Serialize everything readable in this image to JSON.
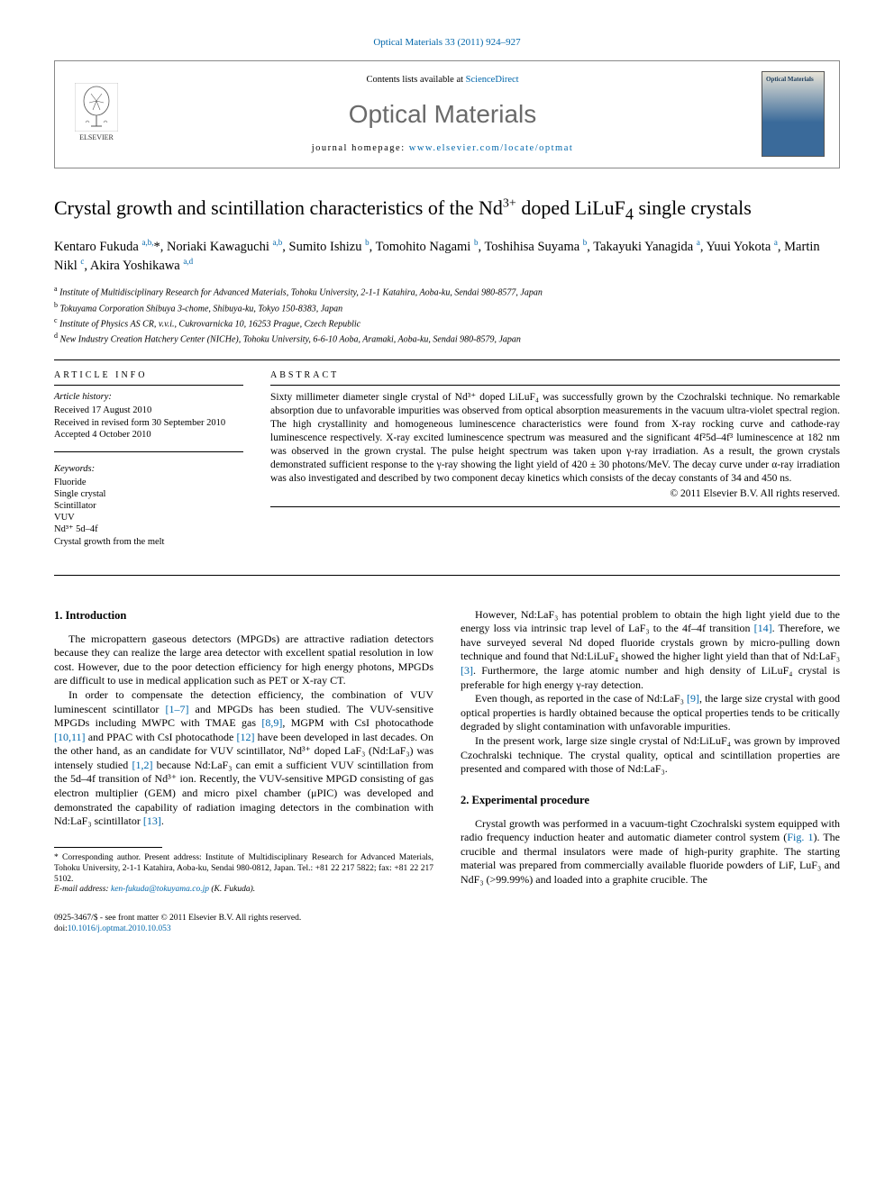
{
  "header": {
    "citation": "Optical Materials 33 (2011) 924–927",
    "contents_prefix": "Contents lists available at ",
    "contents_link": "ScienceDirect",
    "journal_name": "Optical Materials",
    "homepage_prefix": "journal homepage: ",
    "homepage_url": "www.elsevier.com/locate/optmat",
    "publisher_name": "ELSEVIER",
    "cover_label": "Optical Materials"
  },
  "title": {
    "text_before_sup": "Crystal growth and scintillation characteristics of the Nd",
    "sup": "3+",
    "text_after_sup": " doped LiLuF",
    "sub": "4",
    "text_end": " single crystals"
  },
  "authors_line": "Kentaro Fukuda <sup>a,b,</sup><span class='star'>*</span>, Noriaki Kawaguchi <sup>a,b</sup>, Sumito Ishizu <sup>b</sup>, Tomohito Nagami <sup>b</sup>, Toshihisa Suyama <sup>b</sup>, Takayuki Yanagida <sup>a</sup>, Yuui Yokota <sup>a</sup>, Martin Nikl <sup>c</sup>, Akira Yoshikawa <sup>a,d</sup>",
  "affiliations": [
    {
      "sup": "a",
      "text": "Institute of Multidisciplinary Research for Advanced Materials, Tohoku University, 2-1-1 Katahira, Aoba-ku, Sendai 980-8577, Japan"
    },
    {
      "sup": "b",
      "text": "Tokuyama Corporation Shibuya 3-chome, Shibuya-ku, Tokyo 150-8383, Japan"
    },
    {
      "sup": "c",
      "text": "Institute of Physics AS CR, v.v.i., Cukrovarnicka 10, 16253 Prague, Czech Republic"
    },
    {
      "sup": "d",
      "text": "New Industry Creation Hatchery Center (NICHe), Tohoku University, 6-6-10 Aoba, Aramaki, Aoba-ku, Sendai 980-8579, Japan"
    }
  ],
  "article_info": {
    "label": "ARTICLE INFO",
    "history_label": "Article history:",
    "received": "Received 17 August 2010",
    "revised": "Received in revised form 30 September 2010",
    "accepted": "Accepted 4 October 2010",
    "keywords_label": "Keywords:",
    "keywords": [
      "Fluoride",
      "Single crystal",
      "Scintillator",
      "VUV",
      "Nd³⁺ 5d–4f",
      "Crystal growth from the melt"
    ]
  },
  "abstract": {
    "label": "ABSTRACT",
    "text": "Sixty millimeter diameter single crystal of Nd³⁺ doped LiLuF₄ was successfully grown by the Czochralski technique. No remarkable absorption due to unfavorable impurities was observed from optical absorption measurements in the vacuum ultra-violet spectral region. The high crystallinity and homogeneous luminescence characteristics were found from X-ray rocking curve and cathode-ray luminescence respectively. X-ray excited luminescence spectrum was measured and the significant 4f²5d–4f³ luminescence at 182 nm was observed in the grown crystal. The pulse height spectrum was taken upon γ-ray irradiation. As a result, the grown crystals demonstrated sufficient response to the γ-ray showing the light yield of 420 ± 30 photons/MeV. The decay curve under α-ray irradiation was also investigated and described by two component decay kinetics which consists of the decay constants of 34 and 450 ns.",
    "copyright": "© 2011 Elsevier B.V. All rights reserved."
  },
  "sections": {
    "intro_heading": "1. Introduction",
    "intro_p1": "The micropattern gaseous detectors (MPGDs) are attractive radiation detectors because they can realize the large area detector with excellent spatial resolution in low cost. However, due to the poor detection efficiency for high energy photons, MPGDs are difficult to use in medical application such as PET or X-ray CT.",
    "intro_p2": "In order to compensate the detection efficiency, the combination of VUV luminescent scintillator <span class='ref'>[1–7]</span> and MPGDs has been studied. The VUV-sensitive MPGDs including MWPC with TMAE gas <span class='ref'>[8,9]</span>, MGPM with CsI photocathode <span class='ref'>[10,11]</span> and PPAC with CsI photocathode <span class='ref'>[12]</span> have been developed in last decades. On the other hand, as an candidate for VUV scintillator, Nd³⁺ doped LaF₃ (Nd:LaF₃) was intensely studied <span class='ref'>[1,2]</span> because Nd:LaF₃ can emit a sufficient VUV scintillation from the 5d–4f transition of Nd³⁺ ion. Recently, the VUV-sensitive MPGD consisting of gas electron multiplier (GEM) and micro pixel chamber (μPIC) was developed and demonstrated the capability of radiation imaging detectors in the combination with Nd:LaF₃ scintillator <span class='ref'>[13]</span>.",
    "col2_p1": "However, Nd:LaF₃ has potential problem to obtain the high light yield due to the energy loss via intrinsic trap level of LaF₃ to the 4f–4f transition <span class='ref'>[14]</span>. Therefore, we have surveyed several Nd doped fluoride crystals grown by micro-pulling down technique and found that Nd:LiLuF₄ showed the higher light yield than that of Nd:LaF₃ <span class='ref'>[3]</span>. Furthermore, the large atomic number and high density of LiLuF₄ crystal is preferable for high energy γ-ray detection.",
    "col2_p2": "Even though, as reported in the case of Nd:LaF₃ <span class='ref'>[9]</span>, the large size crystal with good optical properties is hardly obtained because the optical properties tends to be critically degraded by slight contamination with unfavorable impurities.",
    "col2_p3": "In the present work, large size single crystal of Nd:LiLuF₄ was grown by improved Czochralski technique. The crystal quality, optical and scintillation properties are presented and compared with those of Nd:LaF₃.",
    "exp_heading": "2. Experimental procedure",
    "exp_p1": "Crystal growth was performed in a vacuum-tight Czochralski system equipped with radio frequency induction heater and automatic diameter control system (<span class='ref'>Fig. 1</span>). The crucible and thermal insulators were made of high-purity graphite. The starting material was prepared from commercially available fluoride powders of LiF, LuF₃ and NdF₃ (>99.99%) and loaded into a graphite crucible. The"
  },
  "footnote": {
    "corr": "* Corresponding author. Present address: Institute of Multidisciplinary Research for Advanced Materials, Tohoku University, 2-1-1 Katahira, Aoba-ku, Sendai 980-0812, Japan. Tel.: +81 22 217 5822; fax: +81 22 217 5102.",
    "email_label": "E-mail address: ",
    "email": "ken-fukuda@tokuyama.co.jp",
    "email_suffix": " (K. Fukuda)."
  },
  "footer": {
    "line1": "0925-3467/$ - see front matter © 2011 Elsevier B.V. All rights reserved.",
    "doi_label": "doi:",
    "doi": "10.1016/j.optmat.2010.10.053"
  },
  "colors": {
    "link": "#0066aa",
    "journal_gray": "#6a6a6a",
    "text": "#000000",
    "bg": "#ffffff"
  }
}
